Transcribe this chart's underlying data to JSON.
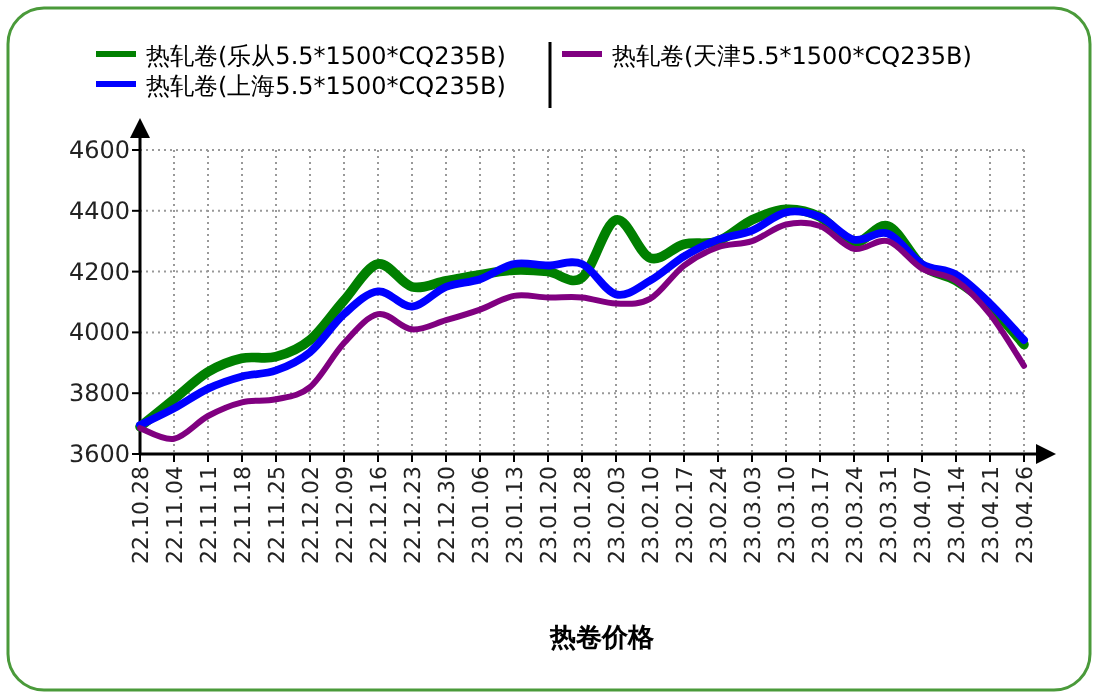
{
  "chart_data": {
    "type": "line",
    "xlabel": "热卷价格",
    "categories": [
      "22.10.28",
      "22.11.04",
      "22.11.11",
      "22.11.18",
      "22.11.25",
      "22.12.02",
      "22.12.09",
      "22.12.16",
      "22.12.23",
      "22.12.30",
      "23.01.06",
      "23.01.13",
      "23.01.20",
      "23.01.28",
      "23.02.03",
      "23.02.10",
      "23.02.17",
      "23.02.24",
      "23.03.03",
      "23.03.10",
      "23.03.17",
      "23.03.24",
      "23.03.31",
      "23.04.07",
      "23.04.14",
      "23.04.21",
      "23.04.26"
    ],
    "series": [
      {
        "name": "热轧卷(乐从5.5*1500*CQ235B)",
        "color": "#008000",
        "values": [
          3690,
          3780,
          3870,
          3915,
          3920,
          3975,
          4105,
          4225,
          4150,
          4170,
          4190,
          4205,
          4200,
          4180,
          4370,
          4245,
          4290,
          4300,
          4370,
          4405,
          4380,
          4295,
          4350,
          4220,
          4170,
          4085,
          3960
        ]
      },
      {
        "name": "热轧卷(上海5.5*1500*CQ235B)",
        "color": "#0000ff",
        "values": [
          3695,
          3750,
          3815,
          3855,
          3875,
          3935,
          4060,
          4135,
          4085,
          4150,
          4175,
          4225,
          4220,
          4225,
          4125,
          4170,
          4250,
          4305,
          4335,
          4395,
          4380,
          4305,
          4325,
          4225,
          4190,
          4095,
          3975
        ]
      },
      {
        "name": "热轧卷(天津5.5*1500*CQ235B)",
        "color": "#800080",
        "values": [
          3685,
          3650,
          3725,
          3770,
          3780,
          3820,
          3965,
          4060,
          4010,
          4040,
          4075,
          4120,
          4115,
          4115,
          4095,
          4110,
          4220,
          4280,
          4300,
          4355,
          4350,
          4275,
          4300,
          4210,
          4170,
          4060,
          3890
        ]
      }
    ],
    "ylim": [
      3600,
      4600
    ],
    "yticks": [
      3600,
      3800,
      4000,
      4200,
      4400,
      4600
    ],
    "grid": true,
    "legend": "top",
    "marker": "none",
    "line_style": "solid"
  }
}
